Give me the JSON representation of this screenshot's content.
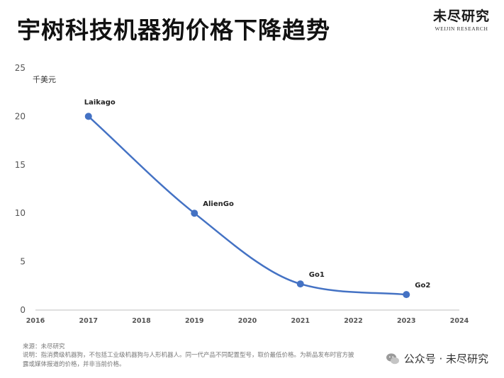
{
  "title": "宇树科技机器狗价格下降趋势",
  "brand": {
    "name_cn": "未尽研究",
    "name_en": "WEIJIN RESEARCH"
  },
  "source": {
    "line1": "来源：未尽研究",
    "line2": "说明：指消费级机器狗，不包括工业级机器狗与人形机器人。同一代产品不同配置型号，取价最低价格。为新品发布时官方披露或媒体报道的价格，并非当前价格。"
  },
  "wechat_label": "公众号 · 未尽研究",
  "colors": {
    "line": "#4472c4",
    "marker": "#4472c4",
    "axis": "#bfbfbf",
    "tick_text": "#555555"
  },
  "chart_data": {
    "type": "line",
    "title": "宇树科技机器狗价格下降趋势",
    "ylabel": "千美元",
    "xlabel": "",
    "xlim": [
      2016,
      2024
    ],
    "ylim": [
      0,
      25
    ],
    "xticks": [
      2016,
      2017,
      2018,
      2019,
      2020,
      2021,
      2022,
      2023,
      2024
    ],
    "yticks": [
      0,
      5,
      10,
      15,
      20,
      25
    ],
    "grid": false,
    "smooth": true,
    "points": [
      {
        "x": 2017,
        "y": 20,
        "label": "Laikago"
      },
      {
        "x": 2019,
        "y": 10,
        "label": "AlienGo"
      },
      {
        "x": 2021,
        "y": 2.7,
        "label": "Go1"
      },
      {
        "x": 2023,
        "y": 1.6,
        "label": "Go2"
      }
    ]
  }
}
